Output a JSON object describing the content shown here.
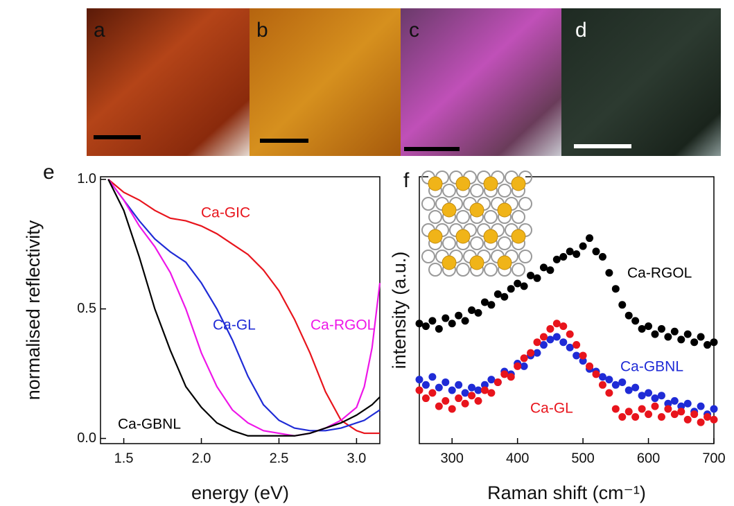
{
  "photos": [
    {
      "label": "a"
    },
    {
      "label": "b"
    },
    {
      "label": "c"
    },
    {
      "label": "d"
    }
  ],
  "chart_data": [
    {
      "type": "line",
      "panel": "e",
      "xlabel": "energy (eV)",
      "ylabel": "normalised reflectivity",
      "xlim": [
        1.35,
        3.15
      ],
      "ylim": [
        -0.02,
        1.01
      ],
      "xticks": [
        1.5,
        {
          "value": 2,
          "label": "2.0"
        },
        2.5,
        {
          "value": 3,
          "label": "3.0"
        }
      ],
      "yticks": [
        {
          "value": 0,
          "label": "0.0"
        },
        0.5,
        {
          "value": 1,
          "label": "1.0"
        }
      ],
      "x": [
        1.4,
        1.5,
        1.6,
        1.7,
        1.8,
        1.9,
        2.0,
        2.1,
        2.2,
        2.3,
        2.4,
        2.5,
        2.6,
        2.7,
        2.8,
        2.9,
        3.0,
        3.05,
        3.1,
        3.15
      ],
      "series": [
        {
          "name": "Ca-GIC",
          "color": "#e8141c",
          "values": [
            1.0,
            0.95,
            0.92,
            0.88,
            0.85,
            0.84,
            0.82,
            0.79,
            0.75,
            0.71,
            0.65,
            0.57,
            0.46,
            0.33,
            0.18,
            0.07,
            0.03,
            0.02,
            0.02,
            0.02
          ]
        },
        {
          "name": "Ca-GL",
          "color": "#1f2bd6",
          "values": [
            1.0,
            0.92,
            0.84,
            0.77,
            0.72,
            0.68,
            0.6,
            0.5,
            0.38,
            0.24,
            0.13,
            0.07,
            0.04,
            0.03,
            0.03,
            0.04,
            0.06,
            0.07,
            0.09,
            0.11
          ]
        },
        {
          "name": "Ca-RGOL",
          "color": "#ee16e8",
          "values": [
            1.0,
            0.92,
            0.82,
            0.74,
            0.64,
            0.5,
            0.33,
            0.2,
            0.11,
            0.06,
            0.03,
            0.02,
            0.01,
            0.02,
            0.04,
            0.07,
            0.12,
            0.2,
            0.35,
            0.6
          ]
        },
        {
          "name": "Ca-GBNL",
          "color": "#000000",
          "values": [
            1.0,
            0.88,
            0.7,
            0.5,
            0.34,
            0.2,
            0.12,
            0.06,
            0.03,
            0.01,
            0.01,
            0.01,
            0.01,
            0.02,
            0.04,
            0.06,
            0.09,
            0.11,
            0.13,
            0.16
          ]
        }
      ]
    },
    {
      "type": "scatter",
      "panel": "f",
      "xlabel": "Raman shift (cm⁻¹)",
      "ylabel": "intensity (a.u.)",
      "xlim": [
        250,
        700
      ],
      "ylim": [
        0,
        1
      ],
      "xticks": [
        300,
        400,
        500,
        600,
        700
      ],
      "x": [
        250,
        260,
        270,
        280,
        290,
        300,
        310,
        320,
        330,
        340,
        350,
        360,
        370,
        380,
        390,
        400,
        410,
        420,
        430,
        440,
        450,
        460,
        470,
        480,
        490,
        500,
        510,
        520,
        530,
        540,
        550,
        560,
        570,
        580,
        590,
        600,
        610,
        620,
        630,
        640,
        650,
        660,
        670,
        680,
        690,
        700
      ],
      "series": [
        {
          "name": "Ca-RGOL",
          "color": "#000000",
          "values": [
            0.45,
            0.44,
            0.46,
            0.43,
            0.47,
            0.45,
            0.48,
            0.46,
            0.5,
            0.49,
            0.53,
            0.52,
            0.56,
            0.55,
            0.58,
            0.6,
            0.59,
            0.63,
            0.62,
            0.66,
            0.65,
            0.69,
            0.7,
            0.72,
            0.71,
            0.74,
            0.77,
            0.72,
            0.7,
            0.64,
            0.58,
            0.52,
            0.48,
            0.46,
            0.43,
            0.44,
            0.41,
            0.43,
            0.4,
            0.42,
            0.39,
            0.41,
            0.38,
            0.4,
            0.37,
            0.38
          ]
        },
        {
          "name": "Ca-GBNL",
          "color": "#1f2bd6",
          "values": [
            0.24,
            0.22,
            0.25,
            0.21,
            0.23,
            0.2,
            0.22,
            0.19,
            0.21,
            0.2,
            0.22,
            0.24,
            0.23,
            0.27,
            0.26,
            0.3,
            0.29,
            0.33,
            0.34,
            0.37,
            0.39,
            0.4,
            0.38,
            0.36,
            0.33,
            0.31,
            0.28,
            0.27,
            0.25,
            0.24,
            0.22,
            0.23,
            0.2,
            0.21,
            0.18,
            0.19,
            0.17,
            0.18,
            0.15,
            0.16,
            0.14,
            0.15,
            0.12,
            0.14,
            0.11,
            0.13
          ]
        },
        {
          "name": "Ca-GL",
          "color": "#e8141c",
          "values": [
            0.2,
            0.17,
            0.19,
            0.14,
            0.16,
            0.13,
            0.17,
            0.15,
            0.18,
            0.16,
            0.2,
            0.19,
            0.23,
            0.26,
            0.25,
            0.29,
            0.32,
            0.34,
            0.38,
            0.4,
            0.43,
            0.45,
            0.44,
            0.41,
            0.37,
            0.33,
            0.29,
            0.26,
            0.22,
            0.19,
            0.13,
            0.1,
            0.12,
            0.1,
            0.13,
            0.11,
            0.14,
            0.1,
            0.13,
            0.11,
            0.12,
            0.09,
            0.11,
            0.08,
            0.1,
            0.09
          ]
        }
      ]
    }
  ]
}
